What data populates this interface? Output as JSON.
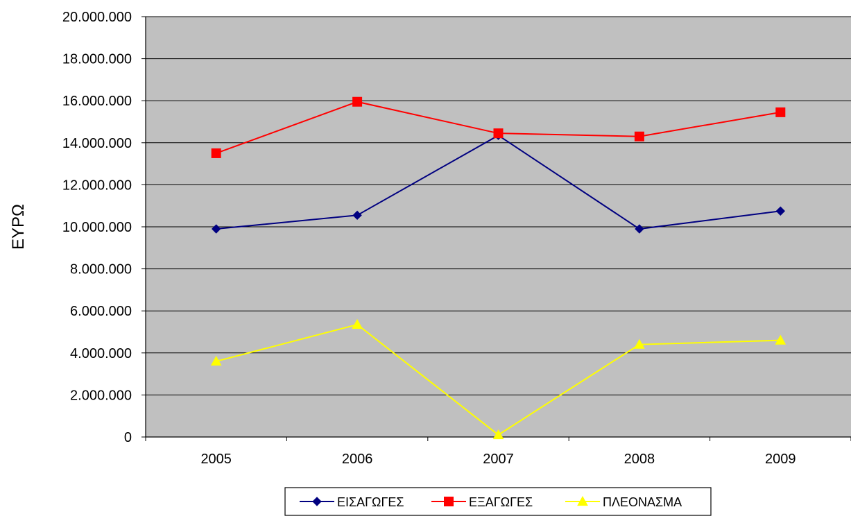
{
  "chart_data": {
    "type": "line",
    "title": "",
    "xlabel": "",
    "ylabel": "ΕΥΡΩ",
    "categories": [
      "2005",
      "2006",
      "2007",
      "2008",
      "2009"
    ],
    "ylim": [
      0,
      20000000
    ],
    "yticks": [
      0,
      2000000,
      4000000,
      6000000,
      8000000,
      10000000,
      12000000,
      14000000,
      16000000,
      18000000,
      20000000
    ],
    "ytick_labels": [
      "0",
      "2.000.000",
      "4.000.000",
      "6.000.000",
      "8.000.000",
      "10.000.000",
      "12.000.000",
      "14.000.000",
      "16.000.000",
      "18.000.000",
      "20.000.000"
    ],
    "grid": true,
    "plot_background": "#c0c0c0",
    "legend_position": "bottom",
    "series": [
      {
        "name": "ΕΙΣΑΓΩΓΕΣ",
        "color": "#000080",
        "marker": "diamond",
        "values": [
          9900000,
          10550000,
          14350000,
          9900000,
          10750000
        ]
      },
      {
        "name": "ΕΞΑΓΩΓΕΣ",
        "color": "#ff0000",
        "marker": "square",
        "values": [
          13500000,
          15950000,
          14450000,
          14300000,
          15450000
        ]
      },
      {
        "name": "ΠΛΕΟΝΑΣΜΑ",
        "color": "#ffff00",
        "marker": "triangle",
        "values": [
          3600000,
          5350000,
          100000,
          4400000,
          4600000
        ]
      }
    ]
  }
}
